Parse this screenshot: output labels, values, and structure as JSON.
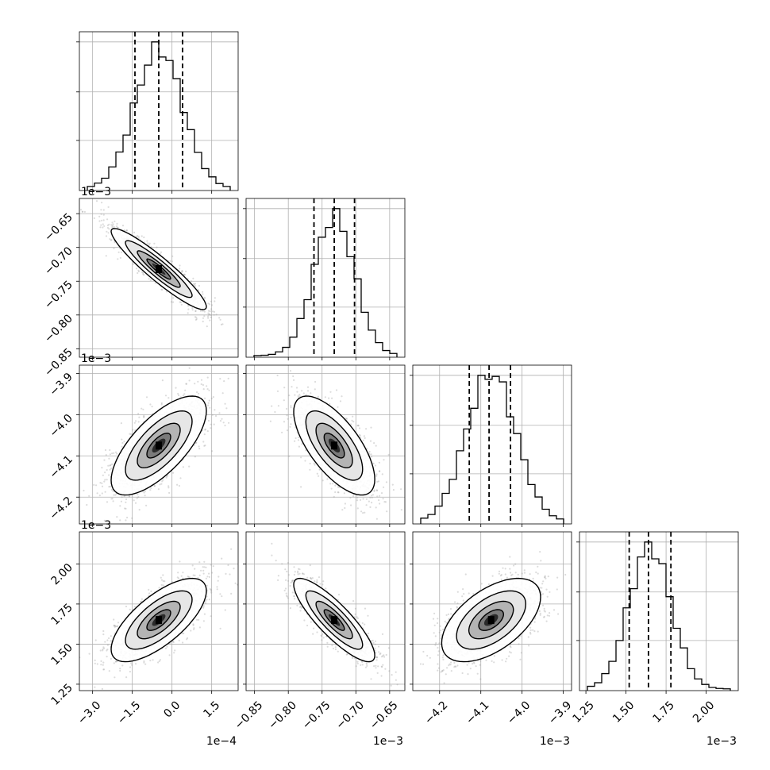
{
  "chart_data": {
    "type": "corner",
    "parameters": [
      {
        "range": [
          -3.5,
          2.5
        ],
        "ticks": [
          -3.0,
          -1.5,
          0.0,
          1.5
        ],
        "tick_labels": [
          "−3.0",
          "−1.5",
          "0.0",
          "1.5"
        ],
        "offset_label": "1e−4",
        "mean": -0.5,
        "sd": 0.9,
        "quantiles": [
          -1.4,
          -0.5,
          0.4
        ]
      },
      {
        "range": [
          -0.8625,
          -0.6275
        ],
        "ticks": [
          -0.85,
          -0.8,
          -0.75,
          -0.7,
          -0.65
        ],
        "tick_labels": [
          "−0.85",
          "−0.80",
          "−0.75",
          "−0.70",
          "−0.65"
        ],
        "offset_label": "1e−3",
        "mean": -0.732,
        "sd": 0.03,
        "quantiles": [
          -0.762,
          -0.732,
          -0.702
        ]
      },
      {
        "range": [
          -4.265,
          -3.88
        ],
        "ticks": [
          -4.2,
          -4.1,
          -4.0,
          -3.9
        ],
        "tick_labels": [
          "−4.2",
          "−4.1",
          "−4.0",
          "−3.9"
        ],
        "offset_label": "1e−3",
        "mean": -4.075,
        "sd": 0.06,
        "quantiles": [
          -4.128,
          -4.08,
          -4.028
        ]
      },
      {
        "range": [
          1.21,
          2.2
        ],
        "ticks": [
          1.25,
          1.5,
          1.75,
          2.0
        ],
        "tick_labels": [
          "1.25",
          "1.50",
          "1.75",
          "2.00"
        ],
        "offset_label": "1e−3",
        "mean": 1.65,
        "sd": 0.13,
        "quantiles": [
          1.52,
          1.64,
          1.78
        ]
      }
    ],
    "correlations": [
      [
        1.0,
        -0.93,
        0.7,
        0.7
      ],
      [
        -0.93,
        1.0,
        -0.68,
        -0.85
      ],
      [
        0.7,
        -0.68,
        1.0,
        0.55
      ],
      [
        0.7,
        -0.85,
        0.55,
        1.0
      ]
    ],
    "grid": true,
    "quantile_style": "dashed",
    "contour_levels": 3,
    "colors": {
      "hist_line": "#000000",
      "contour": "#000000",
      "points": "#9a9a9a",
      "grid": "#b0b0b0"
    }
  }
}
